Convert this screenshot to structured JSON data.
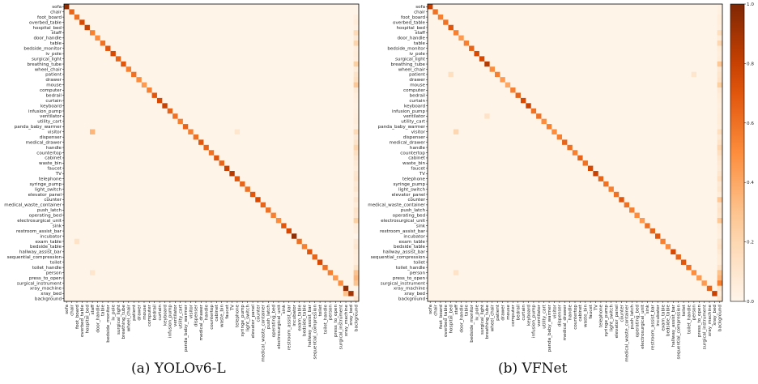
{
  "chart_data": [
    {
      "type": "heatmap",
      "categories": [
        "sofa",
        "chair",
        "foot_board",
        "overbed_table",
        "hospital_bed",
        "staff",
        "door_handle",
        "table",
        "bedside_monitor",
        "iv_pole",
        "surgical_light",
        "breathing_tube",
        "wheel_chair",
        "patient",
        "drawer",
        "mouse",
        "computer",
        "bedrail",
        "curtain",
        "keyboard",
        "infusion_pump",
        "ventilator",
        "utility_cart",
        "panda_baby_warmer",
        "visitor",
        "dispenser",
        "medical_drawer",
        "handle",
        "countertop",
        "cabinet",
        "waste_bin",
        "faucet",
        "TV",
        "telephone",
        "syringe_pump",
        "light_switch",
        "elevator_panel",
        "counter",
        "medical_waste_container",
        "push_latch",
        "operating_bed",
        "electrosurgical_unit",
        "sink",
        "restroom_assist_bar",
        "incubator",
        "exam_table",
        "bedside_table",
        "hallway_assist_bar",
        "sequential_compression",
        "toilet",
        "toilet_handle",
        "person",
        "press_to_open",
        "surgical_instrument",
        "xray_machine",
        "xray_bed",
        "background"
      ],
      "diagonal": [
        0.95,
        0.65,
        0.6,
        0.75,
        0.8,
        0.55,
        0.5,
        0.6,
        0.7,
        0.75,
        0.65,
        0.7,
        0.55,
        0.6,
        0.5,
        0.45,
        0.55,
        0.7,
        0.75,
        0.8,
        0.65,
        0.6,
        0.55,
        0.65,
        0.55,
        0.6,
        0.7,
        0.65,
        0.6,
        0.7,
        0.65,
        0.8,
        0.85,
        0.7,
        0.65,
        0.6,
        0.7,
        0.75,
        0.65,
        0.6,
        0.55,
        0.5,
        0.7,
        0.75,
        0.95,
        0.6,
        0.55,
        0.7,
        0.65,
        0.75,
        0.6,
        0.55,
        0.45,
        0.5,
        0.95,
        0.9,
        0.1
      ],
      "background_column": [
        0,
        0,
        0.04,
        0.06,
        0.03,
        0.18,
        0.08,
        0.22,
        0.05,
        0.06,
        0.05,
        0.25,
        0.06,
        0.12,
        0.15,
        0.28,
        0.08,
        0.05,
        0.04,
        0.03,
        0.04,
        0.05,
        0.06,
        0.04,
        0.18,
        0.08,
        0.12,
        0.22,
        0.15,
        0.1,
        0.08,
        0.06,
        0.1,
        0.12,
        0.08,
        0.1,
        0.05,
        0.1,
        0.06,
        0.12,
        0.1,
        0.25,
        0.06,
        0.05,
        0,
        0.08,
        0.1,
        0.06,
        0.05,
        0.05,
        0.12,
        0.3,
        0.35,
        0.3,
        0,
        0.04,
        0
      ],
      "off_diagonal": [
        {
          "row": "visitor",
          "col": "staff",
          "value": 0.35
        },
        {
          "row": "exam_table",
          "col": "foot_board",
          "value": 0.12
        },
        {
          "row": "visitor",
          "col": "telephone",
          "value": 0.1
        },
        {
          "row": "person",
          "col": "staff",
          "value": 0.1
        },
        {
          "row": "xray_bed",
          "col": "xray_machine",
          "value": 0.3
        }
      ],
      "colorbar_ticks": [],
      "value_range": [
        0,
        1
      ],
      "colormap": "Oranges",
      "caption": "(a) YOLOv6-L"
    },
    {
      "type": "heatmap",
      "categories": [
        "sofa",
        "chair",
        "foot_board",
        "overbed_table",
        "hospital_bed",
        "staff",
        "door_handle",
        "table",
        "bedside_monitor",
        "iv_pole",
        "surgical_light",
        "breathing_tube",
        "wheel_chair",
        "patient",
        "drawer",
        "mouse",
        "computer",
        "bedrail",
        "curtain",
        "keyboard",
        "infusion_pump",
        "ventilator",
        "utility_cart",
        "panda_baby_warmer",
        "visitor",
        "dispenser",
        "medical_drawer",
        "handle",
        "countertop",
        "cabinet",
        "waste_bin",
        "faucet",
        "TV",
        "telephone",
        "syringe_pump",
        "light_switch",
        "elevator_panel",
        "counter",
        "medical_waste_container",
        "push_latch",
        "operating_bed",
        "electrosurgical_unit",
        "sink",
        "restroom_assist_bar",
        "incubator",
        "exam_table",
        "bedside_table",
        "hallway_assist_bar",
        "sequential_compression",
        "toilet",
        "toilet_handle",
        "person",
        "press_to_open",
        "surgical_instrument",
        "xray_machine",
        "xray_bed",
        "background"
      ],
      "diagonal": [
        0.8,
        0.6,
        0.55,
        0.6,
        0.7,
        0.55,
        0.45,
        0.55,
        0.65,
        0.75,
        0.75,
        0.85,
        0.5,
        0.55,
        0.45,
        0.4,
        0.55,
        0.65,
        0.75,
        0.8,
        0.6,
        0.6,
        0.5,
        0.55,
        0.5,
        0.55,
        0.65,
        0.6,
        0.55,
        0.65,
        0.6,
        0.75,
        0.8,
        0.65,
        0.6,
        0.55,
        0.6,
        0.7,
        0.6,
        0.55,
        0.5,
        0.45,
        0.6,
        0.65,
        0.7,
        0.55,
        0.5,
        0.75,
        0.65,
        0.7,
        0.6,
        0.5,
        0.45,
        0.45,
        0.65,
        0.8,
        0.1
      ],
      "background_column": [
        0.02,
        0.03,
        0.05,
        0.05,
        0.04,
        0.15,
        0.06,
        0.2,
        0.06,
        0.05,
        0.06,
        0.28,
        0.08,
        0.1,
        0.12,
        0.25,
        0.08,
        0.06,
        0.05,
        0.04,
        0.05,
        0.06,
        0.06,
        0.05,
        0.15,
        0.08,
        0.12,
        0.2,
        0.15,
        0.1,
        0.08,
        0.07,
        0.1,
        0.15,
        0.08,
        0.1,
        0.06,
        0.28,
        0.1,
        0.12,
        0.1,
        0.28,
        0.06,
        0.05,
        0.04,
        0.1,
        0.12,
        0.08,
        0.06,
        0.06,
        0.12,
        0.3,
        0.35,
        0.55,
        0.1,
        0.06,
        0
      ],
      "off_diagonal": [
        {
          "row": "visitor",
          "col": "staff",
          "value": 0.2
        },
        {
          "row": "patient",
          "col": "hospital_bed",
          "value": 0.15
        },
        {
          "row": "ventilator",
          "col": "breathing_tube",
          "value": 0.12
        },
        {
          "row": "person",
          "col": "staff",
          "value": 0.12
        },
        {
          "row": "patient",
          "col": "person",
          "value": 0.1
        }
      ],
      "colorbar_ticks": [
        "0.0",
        "0.2",
        "0.4",
        "0.6",
        "0.8",
        "1.0"
      ],
      "value_range": [
        0,
        1
      ],
      "colormap": "Oranges",
      "caption": "(b) VFNet"
    }
  ]
}
